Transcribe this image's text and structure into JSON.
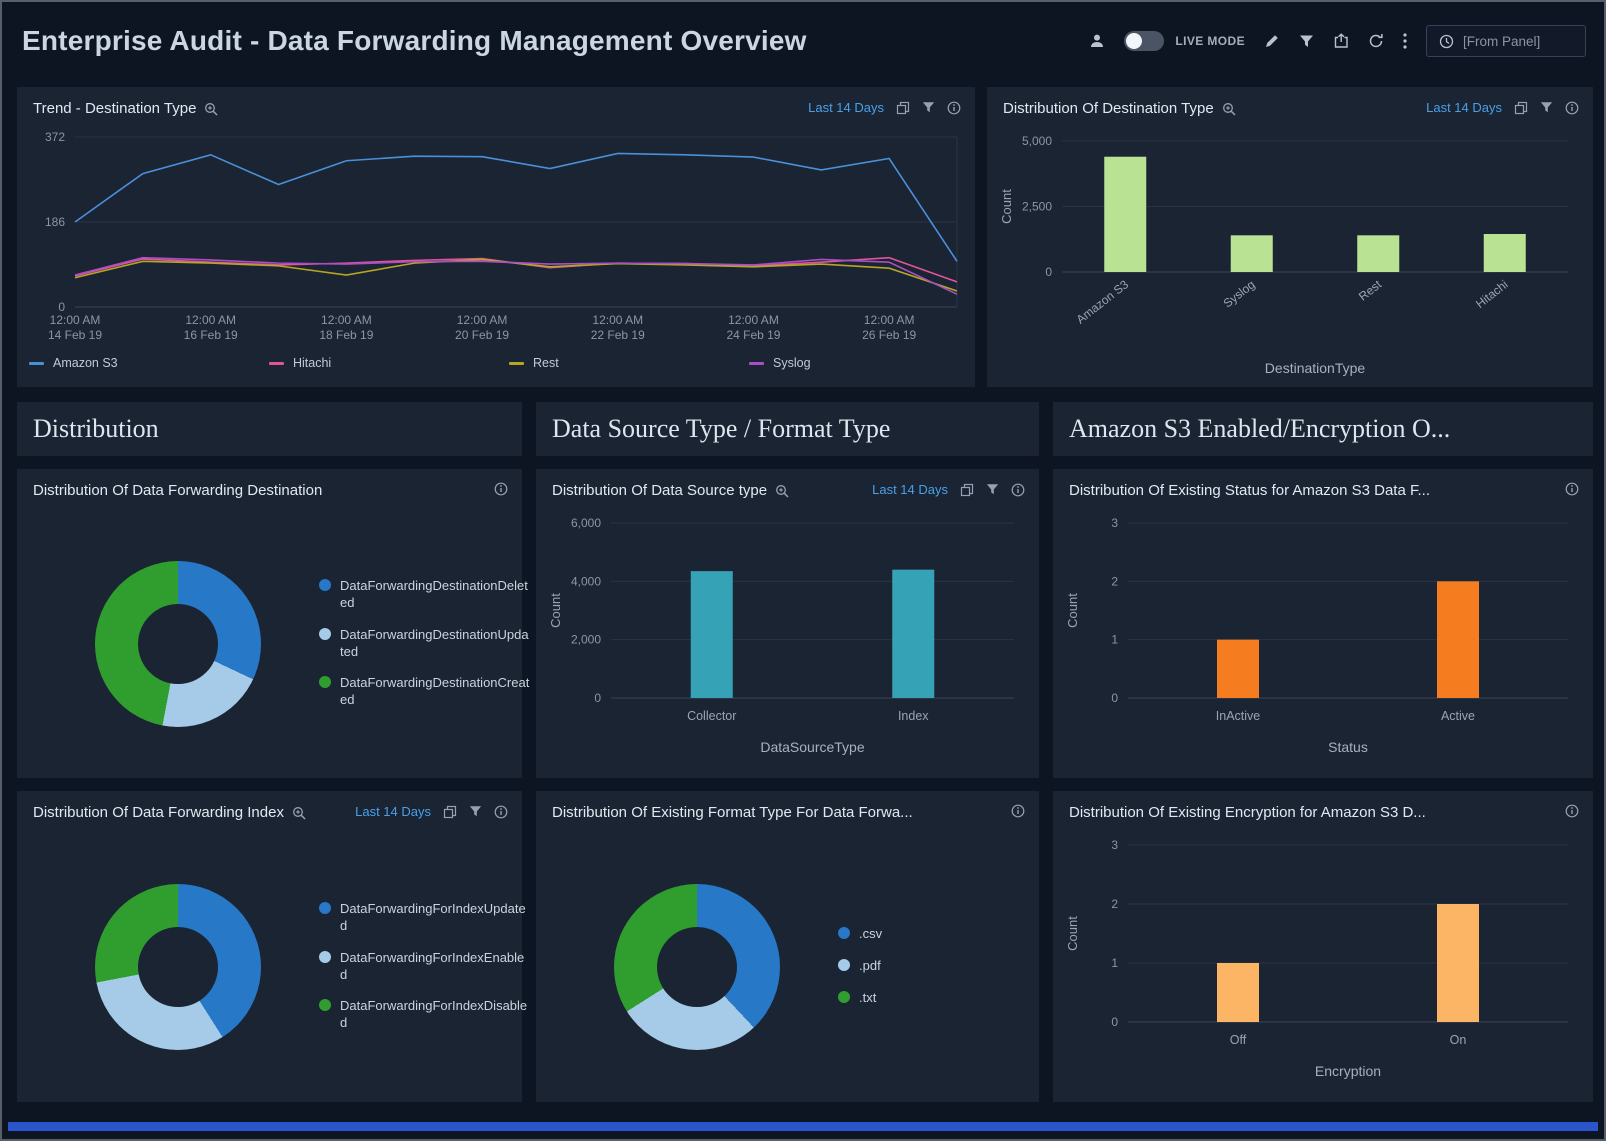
{
  "header": {
    "title": "Enterprise Audit - Data Forwarding Management Overview",
    "live_mode_label": "LIVE MODE",
    "live_mode_on": false,
    "time_range": "[From Panel]",
    "tool_icons": [
      "user",
      "live-mode-toggle",
      "edit",
      "filter",
      "share",
      "refresh",
      "more-menu",
      "clock"
    ]
  },
  "sections": {
    "distribution": "Distribution",
    "data_source_format": "Data Source Type / Format Type",
    "amazon_s3": "Amazon S3 Enabled/Encryption O..."
  },
  "panels": {
    "trend": {
      "title": "Trend - Destination Type",
      "time_range": "Last 14 Days"
    },
    "dest_type": {
      "title": "Distribution Of Destination Type",
      "time_range": "Last 14 Days"
    },
    "dest_donut": {
      "title": "Distribution Of Data Forwarding Destination"
    },
    "data_source": {
      "title": "Distribution Of Data Source type",
      "time_range": "Last 14 Days"
    },
    "status": {
      "title": "Distribution Of Existing Status for Amazon S3 Data F..."
    },
    "index_donut": {
      "title": "Distribution Of Data Forwarding Index",
      "time_range": "Last 14 Days"
    },
    "format_donut": {
      "title": "Distribution Of Existing Format Type For Data Forwa..."
    },
    "encryption": {
      "title": "Distribution Of Existing Encryption for Amazon S3 D..."
    }
  },
  "chart_data": {
    "trend": {
      "type": "line",
      "ymax": 372,
      "yticks": [
        0,
        186,
        372
      ],
      "ytick_labels": [
        "0",
        "186",
        "372"
      ],
      "n_points": 14,
      "x_tick_indices": [
        0,
        2,
        4,
        6,
        8,
        10,
        12
      ],
      "x_tick_labels": [
        [
          "12:00 AM",
          "14 Feb 19"
        ],
        [
          "12:00 AM",
          "16 Feb 19"
        ],
        [
          "12:00 AM",
          "18 Feb 19"
        ],
        [
          "12:00 AM",
          "20 Feb 19"
        ],
        [
          "12:00 AM",
          "22 Feb 19"
        ],
        [
          "12:00 AM",
          "24 Feb 19"
        ],
        [
          "12:00 AM",
          "26 Feb 19"
        ]
      ],
      "series": [
        {
          "name": "Amazon S3",
          "color": "#4a90d9",
          "values": [
            186,
            292,
            333,
            268,
            320,
            330,
            329,
            303,
            336,
            333,
            328,
            300,
            325,
            100
          ]
        },
        {
          "name": "Hitachi",
          "color": "#e05598",
          "values": [
            68,
            105,
            98,
            92,
            96,
            102,
            106,
            86,
            96,
            95,
            90,
            98,
            108,
            55
          ]
        },
        {
          "name": "Rest",
          "color": "#b5a623",
          "values": [
            64,
            100,
            96,
            90,
            70,
            96,
            104,
            88,
            95,
            92,
            88,
            94,
            85,
            35
          ]
        },
        {
          "name": "Syslog",
          "color": "#a94fc4",
          "values": [
            70,
            108,
            103,
            96,
            94,
            99,
            100,
            94,
            96,
            95,
            92,
            104,
            98,
            28
          ]
        }
      ]
    },
    "dest_type": {
      "type": "bar",
      "categories": [
        "Amazon S3",
        "Syslog",
        "Rest",
        "Hitachi"
      ],
      "values": [
        4400,
        1400,
        1400,
        1450
      ],
      "ymax": 5000,
      "yticks": [
        0,
        2500,
        5000
      ],
      "ytick_labels": [
        "0",
        "2,500",
        "5,000"
      ],
      "ylabel": "Count",
      "xlabel": "DestinationType",
      "bar_color": "#b9e393",
      "rotate_labels": true
    },
    "dest_donut": {
      "type": "pie",
      "slices": [
        {
          "label": "DataForwardingDestinationDeleted",
          "value": 32,
          "color": "#2878c8"
        },
        {
          "label": "DataForwardingDestinationUpdated",
          "value": 21,
          "color": "#a6cbe8"
        },
        {
          "label": "DataForwardingDestinationCreated",
          "value": 47,
          "color": "#2f9e2f"
        }
      ]
    },
    "data_source": {
      "type": "bar",
      "categories": [
        "Collector",
        "Index"
      ],
      "values": [
        4350,
        4400
      ],
      "ymax": 6000,
      "yticks": [
        0,
        2000,
        4000,
        6000
      ],
      "ytick_labels": [
        "0",
        "2,000",
        "4,000",
        "6,000"
      ],
      "ylabel": "Count",
      "xlabel": "DataSourceType",
      "bar_color": "#35a3b5",
      "rotate_labels": false
    },
    "status": {
      "type": "bar",
      "categories": [
        "InActive",
        "Active"
      ],
      "values": [
        1,
        2
      ],
      "ymax": 3,
      "yticks": [
        0,
        1,
        2,
        3
      ],
      "ytick_labels": [
        "0",
        "1",
        "2",
        "3"
      ],
      "ylabel": "Count",
      "xlabel": "Status",
      "bar_color": "#f57d20",
      "rotate_labels": false
    },
    "index_donut": {
      "type": "pie",
      "slices": [
        {
          "label": "DataForwardingForIndexUpdated",
          "value": 41,
          "color": "#2878c8"
        },
        {
          "label": "DataForwardingForIndexEnabled",
          "value": 31,
          "color": "#a6cbe8"
        },
        {
          "label": "DataForwardingForIndexDisabled",
          "value": 28,
          "color": "#2f9e2f"
        }
      ]
    },
    "format_donut": {
      "type": "pie",
      "slices": [
        {
          "label": ".csv",
          "value": 38,
          "color": "#2878c8"
        },
        {
          "label": ".pdf",
          "value": 28,
          "color": "#a6cbe8"
        },
        {
          "label": ".txt",
          "value": 34,
          "color": "#2f9e2f"
        }
      ]
    },
    "encryption": {
      "type": "bar",
      "categories": [
        "Off",
        "On"
      ],
      "values": [
        1,
        2
      ],
      "ymax": 3,
      "yticks": [
        0,
        1,
        2,
        3
      ],
      "ytick_labels": [
        "0",
        "1",
        "2",
        "3"
      ],
      "ylabel": "Count",
      "xlabel": "Encryption",
      "bar_color": "#fbb564",
      "rotate_labels": false
    }
  }
}
